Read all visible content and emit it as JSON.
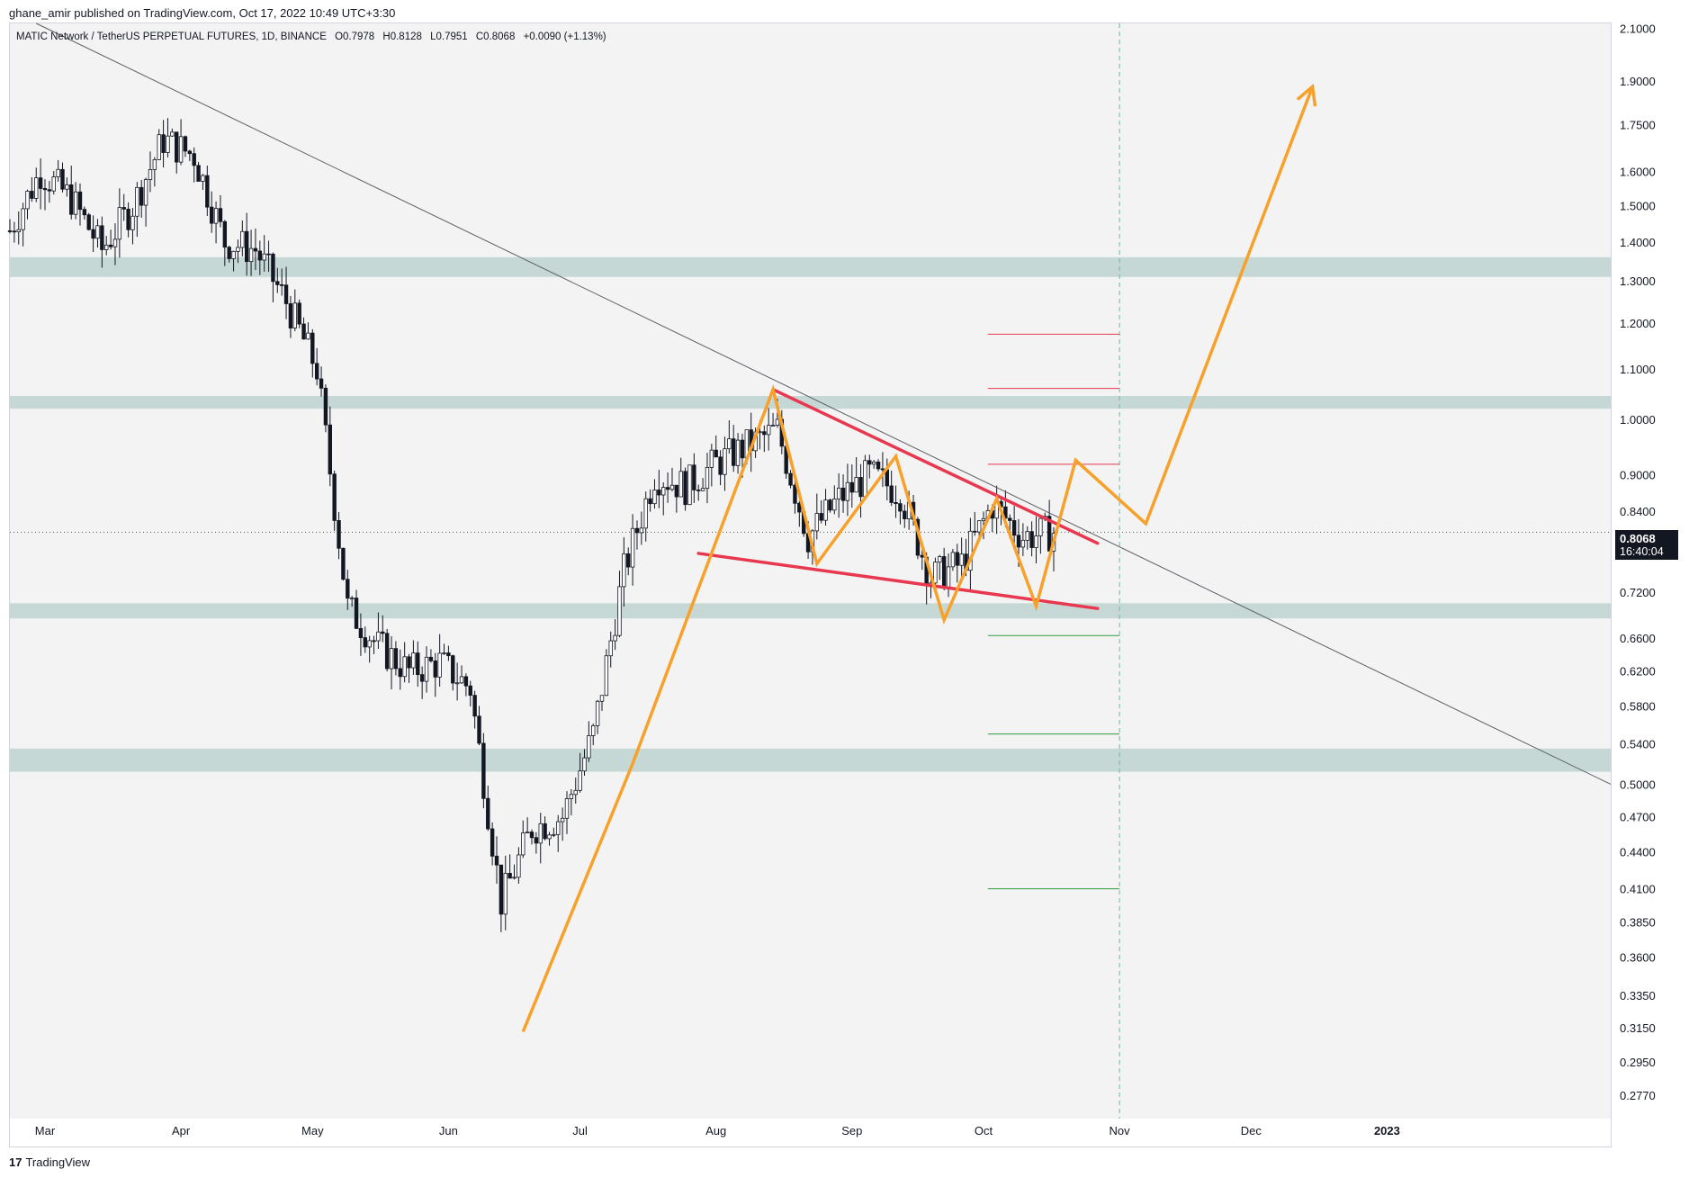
{
  "caption": "ghane_amir published on TradingView.com, Oct 17, 2022 10:49 UTC+3:30",
  "header": {
    "symbol": "MATIC Network / TetherUS PERPETUAL FUTURES, 1D, BINANCE",
    "open": "O0.7978",
    "high": "H0.8128",
    "low": "L0.7951",
    "close": "C0.8068",
    "change": "+0.0090 (+1.13%)"
  },
  "badge": {
    "price": "0.8068",
    "countdown": "16:40:04"
  },
  "footer": {
    "logo_mark": "17",
    "logo_text": "TradingView"
  },
  "colors": {
    "background": "#f3f3f3",
    "zone": "#c5d8d5",
    "candle": "#131722",
    "orange_path": "#f7a12b",
    "red_trend": "#e8384f",
    "target_red": "#e8384f",
    "target_green": "#2e9e3f",
    "trendline": "#5d5f66",
    "vertical_marker": "#6fb8a3"
  },
  "chart_data": {
    "type": "candlestick",
    "scale": "log",
    "ylim": [
      0.265,
      2.12
    ],
    "y_ticks": [
      "2.1000",
      "1.9000",
      "1.7500",
      "1.6000",
      "1.5000",
      "1.4000",
      "1.3000",
      "1.2000",
      "1.1000",
      "1.0000",
      "0.9000",
      "0.8400",
      "0.7200",
      "0.6600",
      "0.6200",
      "0.5800",
      "0.5400",
      "0.5000",
      "0.4700",
      "0.4400",
      "0.4100",
      "0.3850",
      "0.3600",
      "0.3350",
      "0.3150",
      "0.2950",
      "0.2770"
    ],
    "x_ticks": [
      "Mar",
      "Apr",
      "May",
      "Jun",
      "Jul",
      "Aug",
      "Sep",
      "Oct",
      "Nov",
      "Dec",
      "2023"
    ],
    "x_range": [
      "2022-02-21",
      "2023-02-21"
    ],
    "last_price": 0.8068,
    "support_resistance_zones": [
      [
        1.31,
        1.36
      ],
      [
        1.02,
        1.045
      ],
      [
        0.685,
        0.705
      ],
      [
        0.512,
        0.535
      ]
    ],
    "long_trendline": [
      {
        "date": "2022-02-27",
        "price": 2.12
      },
      {
        "date": "2023-02-21",
        "price": 0.5
      }
    ],
    "red_trendlines": [
      {
        "points": [
          {
            "date": "2022-08-14",
            "price": 1.058
          },
          {
            "date": "2022-10-27",
            "price": 0.79
          }
        ]
      },
      {
        "points": [
          {
            "date": "2022-07-28",
            "price": 0.775
          },
          {
            "date": "2022-10-27",
            "price": 0.698
          }
        ]
      }
    ],
    "orange_projection": [
      {
        "date": "2022-06-18",
        "price": 0.3125
      },
      {
        "date": "2022-07-13",
        "price": 0.52
      },
      {
        "date": "2022-08-14",
        "price": 1.058
      },
      {
        "date": "2022-08-24",
        "price": 0.76
      },
      {
        "date": "2022-09-11",
        "price": 0.932
      },
      {
        "date": "2022-09-22",
        "price": 0.683
      },
      {
        "date": "2022-10-04",
        "price": 0.86
      },
      {
        "date": "2022-10-13",
        "price": 0.701
      },
      {
        "date": "2022-10-22",
        "price": 0.925
      },
      {
        "date": "2022-11-07",
        "price": 0.82
      },
      {
        "date": "2022-12-15",
        "price": 1.88
      }
    ],
    "target_levels": [
      {
        "price": 1.175,
        "color": "red"
      },
      {
        "price": 1.06,
        "color": "red"
      },
      {
        "price": 0.918,
        "color": "red"
      },
      {
        "price": 0.663,
        "color": "green"
      },
      {
        "price": 0.55,
        "color": "green"
      },
      {
        "price": 0.41,
        "color": "green"
      }
    ],
    "target_levels_span": [
      "2022-10-02",
      "2022-11-01"
    ],
    "vertical_marker_date": "2022-11-01",
    "candles_daily_close_approx": [
      {
        "date": "2022-02-21",
        "price": 1.43
      },
      {
        "date": "2022-02-28",
        "price": 1.6
      },
      {
        "date": "2022-03-07",
        "price": 1.52
      },
      {
        "date": "2022-03-14",
        "price": 1.38
      },
      {
        "date": "2022-03-21",
        "price": 1.5
      },
      {
        "date": "2022-03-28",
        "price": 1.7
      },
      {
        "date": "2022-04-04",
        "price": 1.65
      },
      {
        "date": "2022-04-11",
        "price": 1.4
      },
      {
        "date": "2022-04-18",
        "price": 1.38
      },
      {
        "date": "2022-04-25",
        "price": 1.25
      },
      {
        "date": "2022-05-02",
        "price": 1.1
      },
      {
        "date": "2022-05-09",
        "price": 0.7
      },
      {
        "date": "2022-05-16",
        "price": 0.65
      },
      {
        "date": "2022-05-23",
        "price": 0.62
      },
      {
        "date": "2022-05-30",
        "price": 0.63
      },
      {
        "date": "2022-06-06",
        "price": 0.6
      },
      {
        "date": "2022-06-13",
        "price": 0.4
      },
      {
        "date": "2022-06-20",
        "price": 0.46
      },
      {
        "date": "2022-06-27",
        "price": 0.47
      },
      {
        "date": "2022-07-04",
        "price": 0.55
      },
      {
        "date": "2022-07-11",
        "price": 0.75
      },
      {
        "date": "2022-07-18",
        "price": 0.9
      },
      {
        "date": "2022-07-25",
        "price": 0.88
      },
      {
        "date": "2022-08-01",
        "price": 0.92
      },
      {
        "date": "2022-08-08",
        "price": 0.95
      },
      {
        "date": "2022-08-15",
        "price": 0.98
      },
      {
        "date": "2022-08-22",
        "price": 0.8
      },
      {
        "date": "2022-08-29",
        "price": 0.86
      },
      {
        "date": "2022-09-05",
        "price": 0.9
      },
      {
        "date": "2022-09-12",
        "price": 0.87
      },
      {
        "date": "2022-09-19",
        "price": 0.74
      },
      {
        "date": "2022-09-26",
        "price": 0.76
      },
      {
        "date": "2022-10-03",
        "price": 0.85
      },
      {
        "date": "2022-10-10",
        "price": 0.8
      },
      {
        "date": "2022-10-17",
        "price": 0.8068
      }
    ]
  }
}
